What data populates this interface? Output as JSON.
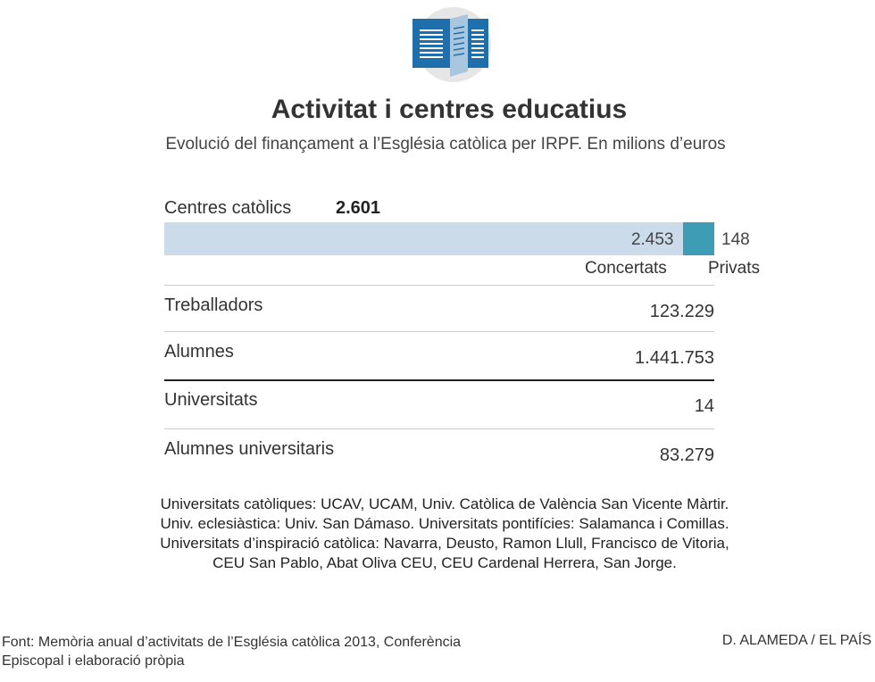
{
  "header": {
    "icon": "open-book-icon",
    "title": "Activitat i centres educatius",
    "subtitle": "Evolució del finançament a l’Església catòlica per IRPF. En milions d’euros"
  },
  "chart_data": {
    "type": "bar",
    "orientation": "horizontal-stacked",
    "total_label": "Centres catòlics",
    "total_value": "2.601",
    "total": 2601,
    "series": [
      {
        "name": "Concertats",
        "value": 2453,
        "label": "2.453",
        "color": "#cbdbea"
      },
      {
        "name": "Privats",
        "value": 148,
        "label": "148",
        "color": "#3d9db5"
      }
    ]
  },
  "table": {
    "rows": [
      {
        "label": "Treballadors",
        "value": "123.229",
        "separator": "light"
      },
      {
        "label": "Alumnes",
        "value": "1.441.753",
        "separator": "light"
      },
      {
        "label": "Universitats",
        "value": "14",
        "separator": "dark"
      },
      {
        "label": "Alumnes universitaris",
        "value": "83.279",
        "separator": "light"
      }
    ]
  },
  "note": "Universitats catòliques: UCAV, UCAM, Univ. Catòlica de València San Vicente Màrtir. Univ. eclesiàstica: Univ. San Dámaso. Universitats pontifícies: Salamanca i Comillas. Universitats d’inspiració catòlica: Navarra, Deusto, Ramon Llull, Francisco de Vitoria, CEU San Pablo, Abat Oliva CEU, CEU Cardenal Herrera, San Jorge.",
  "footer": {
    "source": "Font: Memòria anual d’activitats de l’Església catòlica 2013, Conferència Episcopal i elaboració pròpia",
    "credit": "D. ALAMEDA / EL PAÍS"
  }
}
